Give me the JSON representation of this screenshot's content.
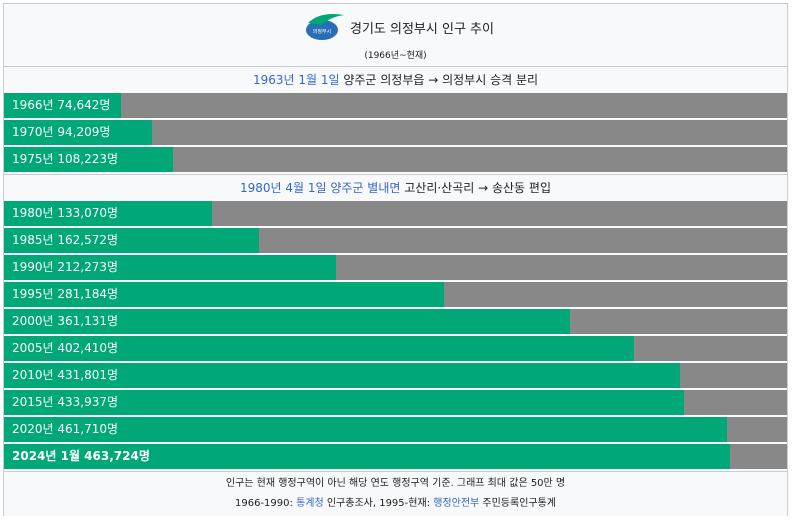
{
  "header": {
    "title": "경기도 의정부시 인구 추이",
    "subtitle": "(1966년~현재)",
    "logo_text": "의정부시"
  },
  "sections": [
    {
      "date": "1963년 1월 1일",
      "text": " 양주군 의정부읍 → 의정부시 승격 분리"
    },
    {
      "date": "1980년 4월 1일 양주군 별내면",
      "text": " 고산리·산곡리 → 송산동 편입"
    }
  ],
  "colors": {
    "bar": "#00a878",
    "track": "#888888",
    "link": "#3366cc"
  },
  "chart_data": {
    "type": "bar",
    "orientation": "horizontal",
    "max_value": 500000,
    "rows": [
      {
        "label": "1966년 74,642명",
        "year": 1966,
        "value": 74642
      },
      {
        "label": "1970년 94,209명",
        "year": 1970,
        "value": 94209
      },
      {
        "label": "1975년 108,223명",
        "year": 1975,
        "value": 108223
      },
      {
        "label": "1980년 133,070명",
        "year": 1980,
        "value": 133070
      },
      {
        "label": "1985년 162,572명",
        "year": 1985,
        "value": 162572
      },
      {
        "label": "1990년 212,273명",
        "year": 1990,
        "value": 212273
      },
      {
        "label": "1995년 281,184명",
        "year": 1995,
        "value": 281184
      },
      {
        "label": "2000년 361,131명",
        "year": 2000,
        "value": 361131
      },
      {
        "label": "2005년 402,410명",
        "year": 2005,
        "value": 402410
      },
      {
        "label": "2010년 431,801명",
        "year": 2010,
        "value": 431801
      },
      {
        "label": "2015년 433,937명",
        "year": 2015,
        "value": 433937
      },
      {
        "label": "2020년 461,710명",
        "year": 2020,
        "value": 461710
      },
      {
        "label": "2024년 1월 463,724명",
        "year": 2024,
        "value": 463724
      }
    ]
  },
  "footer": {
    "note": "인구는 현재 행정구역이 아닌 해당 연도 행정구역 기준. 그래프 최대 값은 50만 명",
    "source_prefix": "1966-1990: ",
    "source_link1": "통계청",
    "source_mid": " 인구총조사, 1995-현재: ",
    "source_link2": "행정안전부",
    "source_suffix": " 주민등록인구통계"
  }
}
